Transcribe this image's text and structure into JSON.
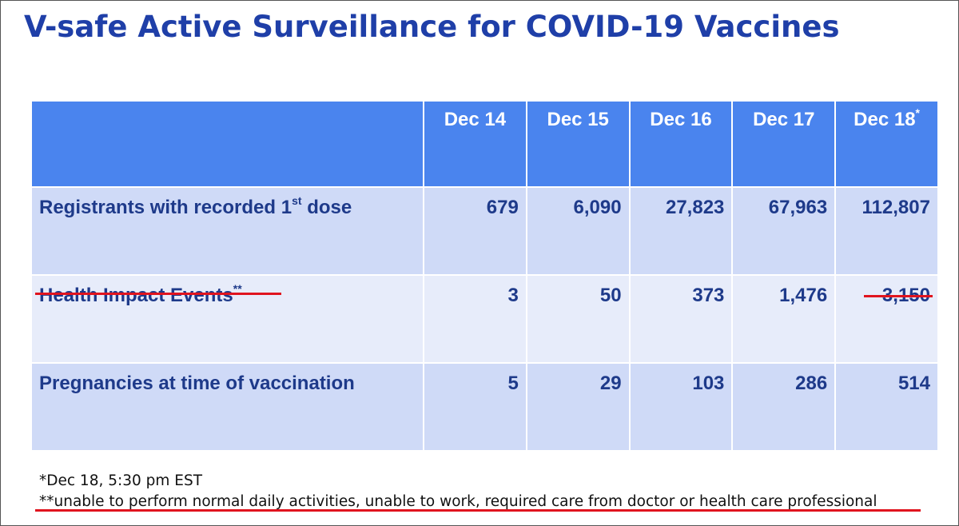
{
  "title": "V-safe Active Surveillance for COVID-19 Vaccines",
  "table": {
    "header": {
      "col1": "Dec 14",
      "col2": "Dec 15",
      "col3": "Dec 16",
      "col4": "Dec 17",
      "col5": "Dec 18",
      "col5_marker": "*"
    },
    "rows": [
      {
        "label": "Registrants with recorded 1",
        "label_sup": "st",
        "label_suffix": " dose",
        "values": [
          "679",
          "6,090",
          "27,823",
          "67,963",
          "112,807"
        ]
      },
      {
        "label": "Health Impact Events",
        "label_sup": "**",
        "values": [
          "3",
          "50",
          "373",
          "1,476",
          "3,150"
        ]
      },
      {
        "label": "Pregnancies at time of vaccination",
        "values": [
          "5",
          "29",
          "103",
          "286",
          "514"
        ]
      }
    ]
  },
  "footnotes": {
    "note1": "*Dec 18, 5:30 pm EST",
    "note2": "**unable to perform normal daily activities, unable to work, required care from doctor or health care professional"
  },
  "colors": {
    "title": "#1f3fa8",
    "header_bg": "#4a84ee",
    "row_dark": "#cfdaf7",
    "row_light": "#e7ecfa",
    "cell_text": "#1e3a8a",
    "annotation_underline": "#e0141e"
  }
}
